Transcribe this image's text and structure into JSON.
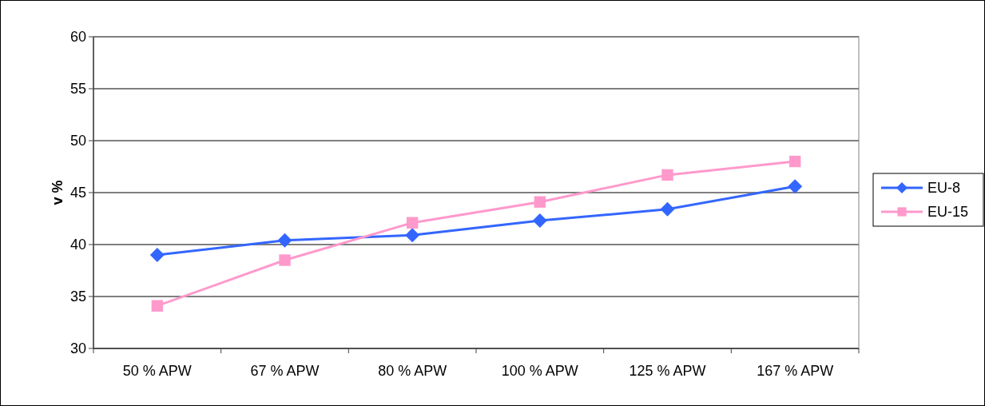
{
  "chart_data": {
    "type": "line",
    "ylabel": "v %",
    "categories": [
      "50 % APW",
      "67 % APW",
      "80 % APW",
      "100 % APW",
      "125 % APW",
      "167 % APW"
    ],
    "series": [
      {
        "name": "EU-8",
        "color": "#3366ff",
        "marker": "diamond",
        "values": [
          39.0,
          40.4,
          40.9,
          42.3,
          43.4,
          45.6
        ]
      },
      {
        "name": "EU-15",
        "color": "#ff99cc",
        "marker": "square",
        "values": [
          34.1,
          38.5,
          42.1,
          44.1,
          46.7,
          48.0
        ]
      }
    ],
    "ylim": [
      30,
      60
    ],
    "yticks": [
      30,
      35,
      40,
      45,
      50,
      55,
      60
    ],
    "grid": "y",
    "legend": "right",
    "line_style": "solid"
  }
}
